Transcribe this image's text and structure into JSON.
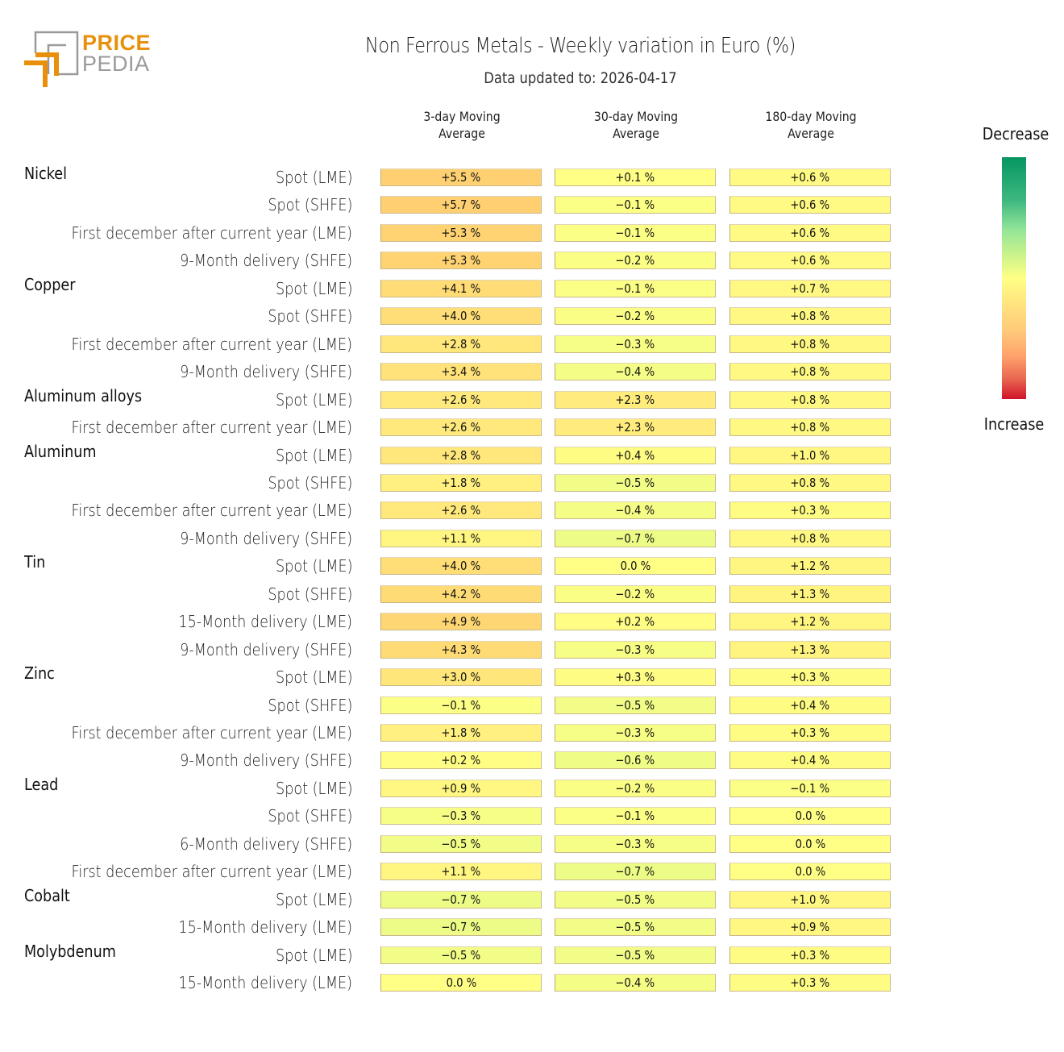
{
  "logo": {
    "word1": "PRICE",
    "word2": "PEDIA",
    "brand_orange": "#e8900c",
    "brand_gray": "#9a9a9a"
  },
  "header": {
    "title": "Non Ferrous Metals - Weekly variation in Euro (%)",
    "subtitle": "Data updated to: 2026-04-17"
  },
  "legend": {
    "top_label": "Decrease",
    "bottom_label": "Increase",
    "colors": {
      "decrease": "#069661",
      "neutral": "#ffff85",
      "increase": "#d01428"
    }
  },
  "chart_data": {
    "type": "heatmap",
    "title": "Non Ferrous Metals - Weekly variation in Euro (%)",
    "subtitle": "Data updated to: 2026-04-17",
    "columns": [
      "3-day Moving Average",
      "30-day Moving Average",
      "180-day Moving Average"
    ],
    "column_lines": [
      [
        "3-day Moving",
        "Average"
      ],
      [
        "30-day Moving",
        "Average"
      ],
      [
        "180-day Moving",
        "Average"
      ]
    ],
    "unit": "%",
    "legend": {
      "top": "Decrease",
      "bottom": "Increase",
      "placement": "right"
    },
    "groups": [
      {
        "name": "Nickel",
        "rows": [
          {
            "label": "Spot (LME)",
            "values": [
              5.5,
              0.1,
              0.6
            ]
          },
          {
            "label": "Spot (SHFE)",
            "values": [
              5.7,
              -0.1,
              0.6
            ]
          },
          {
            "label": "First december after current year (LME)",
            "values": [
              5.3,
              -0.1,
              0.6
            ]
          },
          {
            "label": "9-Month delivery (SHFE)",
            "values": [
              5.3,
              -0.2,
              0.6
            ]
          }
        ]
      },
      {
        "name": "Copper",
        "rows": [
          {
            "label": "Spot (LME)",
            "values": [
              4.1,
              -0.1,
              0.7
            ]
          },
          {
            "label": "Spot (SHFE)",
            "values": [
              4.0,
              -0.2,
              0.8
            ]
          },
          {
            "label": "First december after current year (LME)",
            "values": [
              2.8,
              -0.3,
              0.8
            ]
          },
          {
            "label": "9-Month delivery (SHFE)",
            "values": [
              3.4,
              -0.4,
              0.8
            ]
          }
        ]
      },
      {
        "name": "Aluminum alloys",
        "rows": [
          {
            "label": "Spot (LME)",
            "values": [
              2.6,
              2.3,
              0.8
            ]
          },
          {
            "label": "First december after current year (LME)",
            "values": [
              2.6,
              2.3,
              0.8
            ]
          }
        ]
      },
      {
        "name": "Aluminum",
        "rows": [
          {
            "label": "Spot (LME)",
            "values": [
              2.8,
              0.4,
              1.0
            ]
          },
          {
            "label": "Spot (SHFE)",
            "values": [
              1.8,
              -0.5,
              0.8
            ]
          },
          {
            "label": "First december after current year (LME)",
            "values": [
              2.6,
              -0.4,
              0.3
            ]
          },
          {
            "label": "9-Month delivery (SHFE)",
            "values": [
              1.1,
              -0.7,
              0.8
            ]
          }
        ]
      },
      {
        "name": "Tin",
        "rows": [
          {
            "label": "Spot (LME)",
            "values": [
              4.0,
              0.0,
              1.2
            ]
          },
          {
            "label": "Spot (SHFE)",
            "values": [
              4.2,
              -0.2,
              1.3
            ]
          },
          {
            "label": "15-Month delivery (LME)",
            "values": [
              4.9,
              0.2,
              1.2
            ]
          },
          {
            "label": "9-Month delivery (SHFE)",
            "values": [
              4.3,
              -0.3,
              1.3
            ]
          }
        ]
      },
      {
        "name": "Zinc",
        "rows": [
          {
            "label": "Spot (LME)",
            "values": [
              3.0,
              0.3,
              0.3
            ]
          },
          {
            "label": "Spot (SHFE)",
            "values": [
              -0.1,
              -0.5,
              0.4
            ]
          },
          {
            "label": "First december after current year (LME)",
            "values": [
              1.8,
              -0.3,
              0.3
            ]
          },
          {
            "label": "9-Month delivery (SHFE)",
            "values": [
              0.2,
              -0.6,
              0.4
            ]
          }
        ]
      },
      {
        "name": "Lead",
        "rows": [
          {
            "label": "Spot (LME)",
            "values": [
              0.9,
              -0.2,
              -0.1
            ]
          },
          {
            "label": "Spot (SHFE)",
            "values": [
              -0.3,
              -0.1,
              0.0
            ]
          },
          {
            "label": "6-Month delivery (SHFE)",
            "values": [
              -0.5,
              -0.3,
              0.0
            ]
          },
          {
            "label": "First december after current year (LME)",
            "values": [
              1.1,
              -0.7,
              0.0
            ]
          }
        ]
      },
      {
        "name": "Cobalt",
        "rows": [
          {
            "label": "Spot (LME)",
            "values": [
              -0.7,
              -0.5,
              1.0
            ]
          },
          {
            "label": "15-Month delivery (LME)",
            "values": [
              -0.7,
              -0.5,
              0.9
            ]
          }
        ]
      },
      {
        "name": "Molybdenum",
        "rows": [
          {
            "label": "Spot (LME)",
            "values": [
              -0.5,
              -0.5,
              0.3
            ]
          },
          {
            "label": "15-Month delivery (LME)",
            "values": [
              0.0,
              -0.4,
              0.3
            ]
          }
        ]
      }
    ]
  }
}
